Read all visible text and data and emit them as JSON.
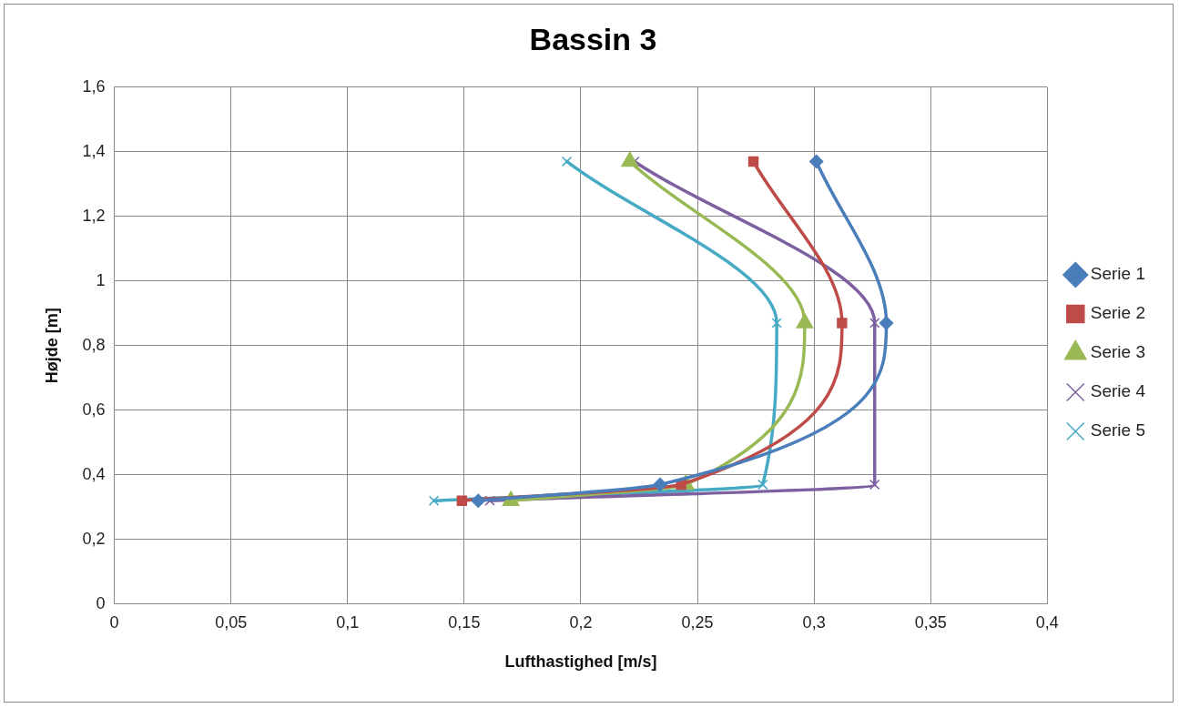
{
  "chart_data": {
    "type": "line",
    "title": "Bassin 3",
    "xlabel": "Lufthastighed [m/s]",
    "ylabel": "Højde [m]",
    "xlim": [
      0,
      0.4
    ],
    "xticks": [
      0,
      {
        "value": 0.05,
        "label": "0,05"
      },
      {
        "value": 0.1,
        "label": "0,1"
      },
      {
        "value": 0.15,
        "label": "0,15"
      },
      {
        "value": 0.2,
        "label": "0,2"
      },
      {
        "value": 0.25,
        "label": "0,25"
      },
      {
        "value": 0.3,
        "label": "0,3"
      },
      {
        "value": 0.35,
        "label": "0,35"
      },
      {
        "value": 0.4,
        "label": "0,4"
      }
    ],
    "ylim": [
      0,
      1.6
    ],
    "yticks": [
      0,
      {
        "value": 0.2,
        "label": "0,2"
      },
      {
        "value": 0.4,
        "label": "0,4"
      },
      {
        "value": 0.6,
        "label": "0,6"
      },
      {
        "value": 0.8,
        "label": "0,8"
      },
      1,
      {
        "value": 1.2,
        "label": "1,2"
      },
      {
        "value": 1.4,
        "label": "1,4"
      },
      {
        "value": 1.6,
        "label": "1,6"
      }
    ],
    "grid": true,
    "legend": "right",
    "line_style": "solid",
    "series": [
      {
        "name": "Serie 1",
        "color": "#4a7ebb",
        "marker": "diamond",
        "x": [
          0.301,
          0.331,
          0.234,
          0.156
        ],
        "values": [
          1.37,
          0.87,
          0.37,
          0.32
        ]
      },
      {
        "name": "Serie 2",
        "color": "#be4b48",
        "marker": "square",
        "x": [
          0.274,
          0.312,
          0.243,
          0.149
        ],
        "values": [
          1.37,
          0.87,
          0.37,
          0.32
        ]
      },
      {
        "name": "Serie 3",
        "color": "#98b954",
        "marker": "triangle",
        "x": [
          0.221,
          0.296,
          0.245,
          0.17
        ],
        "values": [
          1.37,
          0.87,
          0.37,
          0.32
        ]
      },
      {
        "name": "Serie 4",
        "color": "#7d60a0",
        "marker": "cross",
        "x": [
          0.223,
          0.326,
          0.326,
          0.161
        ],
        "values": [
          1.37,
          0.87,
          0.37,
          0.32
        ]
      },
      {
        "name": "Serie 5",
        "color": "#46aac5",
        "marker": "cross",
        "x": [
          0.194,
          0.284,
          0.278,
          0.137
        ],
        "values": [
          1.37,
          0.87,
          0.37,
          0.32
        ]
      }
    ]
  }
}
